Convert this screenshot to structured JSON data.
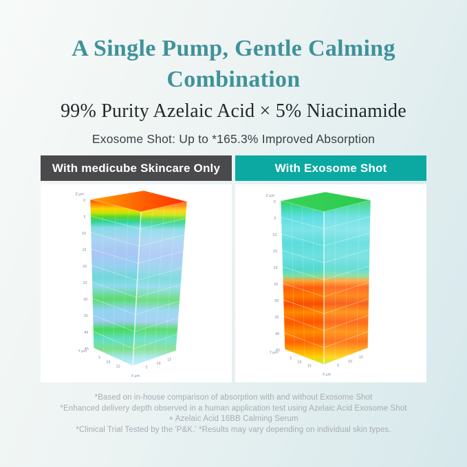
{
  "title": {
    "line1": "A Single Pump, Gentle Calming",
    "line2": "Combination"
  },
  "subtitle": "99% Purity Azelaic Acid × 5% Niacinamide",
  "highlight_line": "Exosome Shot: Up to *165.3% Improved Absorption",
  "colors": {
    "title_teal": "#3f929a",
    "header_dark": "#4a4a4c",
    "header_teal": "#0ba9a2",
    "background_left": "#f7faf8",
    "background_right": "#d6e8ec",
    "footnote_gray": "#a7acb4",
    "card_white": "#ffffff"
  },
  "panels": {
    "left": {
      "header": "With medicube Skincare Only",
      "chart": {
        "type": "3d-absorption-heatmap",
        "z_axis_label": "Z µm",
        "y_axis_label": "Y µm",
        "x_axis_label": "X µm",
        "z_ticks": [
          0,
          5,
          10,
          15,
          20,
          25,
          30,
          35,
          40,
          45
        ],
        "x_ticks": [
          5,
          10,
          15
        ],
        "y_ticks": [
          5,
          10,
          15
        ],
        "absorption_summary": "high absorption only at surface (0-5 µm), low below",
        "top_stops": [
          [
            0,
            "#ffa200"
          ],
          [
            0.45,
            "#ff6a00"
          ],
          [
            1,
            "#ff2e00"
          ]
        ],
        "face_stops": [
          [
            0,
            "#ff4f10"
          ],
          [
            0.03,
            "#ff8a00"
          ],
          [
            0.055,
            "#ffd000"
          ],
          [
            0.08,
            "#c8e400"
          ],
          [
            0.105,
            "#55d631"
          ],
          [
            0.135,
            "#2fd39e"
          ],
          [
            0.17,
            "#86dbe8"
          ],
          [
            0.24,
            "#a9d4f2"
          ],
          [
            0.32,
            "#a9c6f4"
          ],
          [
            0.4,
            "#97d0f0"
          ],
          [
            0.47,
            "#6fd8d8"
          ],
          [
            0.52,
            "#8ed9ee"
          ],
          [
            0.6,
            "#5bdb6e"
          ],
          [
            0.66,
            "#8fd4ef"
          ],
          [
            0.73,
            "#9ccdf2"
          ],
          [
            0.78,
            "#46d95c"
          ],
          [
            0.84,
            "#62dfc8"
          ],
          [
            0.9,
            "#7ce08a"
          ],
          [
            0.95,
            "#a5e6ef"
          ],
          [
            1,
            "#c2ecf4"
          ]
        ]
      }
    },
    "right": {
      "header": "With Exosome Shot",
      "chart": {
        "type": "3d-absorption-heatmap",
        "z_axis_label": "Z µm",
        "y_axis_label": "Y µm",
        "x_axis_label": "X µm",
        "z_ticks": [
          0,
          5,
          10,
          15,
          20,
          25,
          30,
          35,
          40,
          45
        ],
        "x_ticks": [
          5,
          10,
          15
        ],
        "y_ticks": [
          5,
          10,
          15
        ],
        "absorption_summary": "strong absorption reaching deep layers (~25-45 µm)",
        "top_stops": [
          [
            0,
            "#38d458"
          ],
          [
            1,
            "#2bc94f"
          ]
        ],
        "face_stops": [
          [
            0,
            "#35d45c"
          ],
          [
            0.05,
            "#3fd9a8"
          ],
          [
            0.1,
            "#5edee2"
          ],
          [
            0.18,
            "#7ce4e8"
          ],
          [
            0.26,
            "#5cdcdc"
          ],
          [
            0.34,
            "#6de0e0"
          ],
          [
            0.42,
            "#52d9ce"
          ],
          [
            0.46,
            "#7fdfa0"
          ],
          [
            0.49,
            "#ffa22e"
          ],
          [
            0.53,
            "#ff5c0a"
          ],
          [
            0.58,
            "#ff7b00"
          ],
          [
            0.63,
            "#f84d00"
          ],
          [
            0.68,
            "#ff8a00"
          ],
          [
            0.74,
            "#ff5500"
          ],
          [
            0.8,
            "#ff8c00"
          ],
          [
            0.86,
            "#ff6000"
          ],
          [
            0.91,
            "#ffa000"
          ],
          [
            0.955,
            "#ffd400"
          ],
          [
            1,
            "#c6e83e"
          ]
        ]
      }
    }
  },
  "footnotes": [
    "*Based on in-house comparison of absorption with and without Exosome Shot",
    "*Enhanced delivery depth observed in a human application test using Azelaic Acid Exosome Shot",
    "+ Azelaic Acid 16BB Calming Serum",
    "*Clinical Trial Tested by the 'P&K.' *Results may vary depending on individual skin types."
  ]
}
